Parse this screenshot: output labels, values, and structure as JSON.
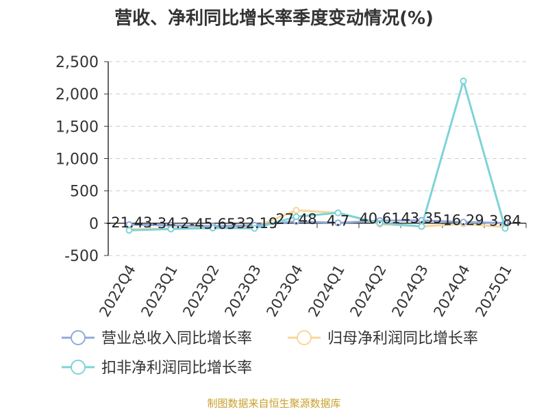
{
  "chart_data": {
    "type": "line",
    "title": "营收、净利同比增长率季度变动情况(%)",
    "categories": [
      "2022Q4",
      "2023Q1",
      "2023Q2",
      "2023Q3",
      "2023Q4",
      "2024Q1",
      "2024Q2",
      "2024Q3",
      "2024Q4",
      "2025Q1"
    ],
    "ylim": [
      -500,
      2500
    ],
    "yticks": [
      -500,
      0,
      500,
      1000,
      1500,
      2000,
      2500
    ],
    "ytick_labels": [
      "-500",
      "0",
      "500",
      "1,000",
      "1,500",
      "2,000",
      "2,500"
    ],
    "grid": true,
    "legend_position": "bottom",
    "series": [
      {
        "name": "营业总收入同比增长率",
        "color": "#8faadc",
        "values": [
          -21.43,
          -34.2,
          -45.65,
          -32.19,
          27.48,
          4.7,
          40.61,
          43.35,
          16.29,
          3.84
        ]
      },
      {
        "name": "归母净利润同比增长率",
        "color": "#f8d59a",
        "values": [
          -95,
          -80,
          -55,
          -60,
          200,
          160,
          -15,
          -50,
          -10,
          -60
        ]
      },
      {
        "name": "扣非净利润同比增长率",
        "color": "#7dd3d8",
        "values": [
          -110,
          -90,
          -75,
          -80,
          100,
          160,
          0,
          -50,
          2200,
          -80
        ]
      }
    ],
    "data_labels": [
      "-21.43",
      "-34.2",
      "-45.65",
      "-32.19",
      "27.48",
      "4.7",
      "40.61",
      "43.35",
      "16.29",
      "3.84"
    ]
  },
  "footer": "制图数据来自恒生聚源数据库"
}
